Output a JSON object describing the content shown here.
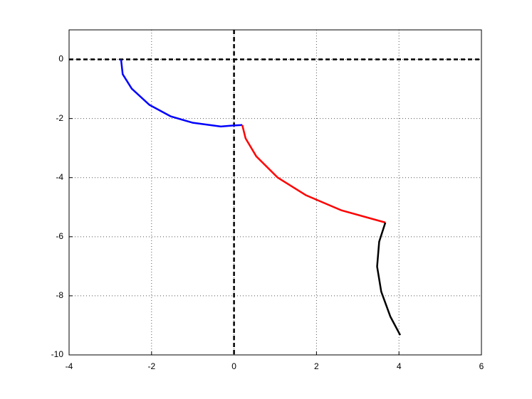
{
  "chart_data": {
    "type": "line",
    "xlim": [
      -4,
      6
    ],
    "ylim": [
      -10,
      1
    ],
    "xticks": [
      -4,
      -2,
      0,
      2,
      4,
      6
    ],
    "yticks": [
      -10,
      -8,
      -6,
      -4,
      -2,
      0
    ],
    "grid": true,
    "zero_lines": true,
    "series": [
      {
        "color": "#0000ff",
        "x": [
          -2.74,
          -2.7,
          -2.48,
          -2.05,
          -1.53,
          -1.01,
          -0.32,
          -0.06,
          0.2
        ],
        "values": [
          0,
          -0.5,
          -0.99,
          -1.54,
          -1.93,
          -2.14,
          -2.27,
          -2.24,
          -2.22
        ]
      },
      {
        "color": "#ff0000",
        "x": [
          0.2,
          0.28,
          0.54,
          1.06,
          1.75,
          2.61,
          3.67
        ],
        "values": [
          -2.22,
          -2.67,
          -3.28,
          -4.0,
          -4.6,
          -5.11,
          -5.52
        ]
      },
      {
        "color": "#000000",
        "x": [
          3.67,
          3.52,
          3.47,
          3.57,
          3.79,
          4.03
        ],
        "values": [
          -5.52,
          -6.17,
          -7.01,
          -7.86,
          -8.7,
          -9.33
        ]
      }
    ]
  }
}
